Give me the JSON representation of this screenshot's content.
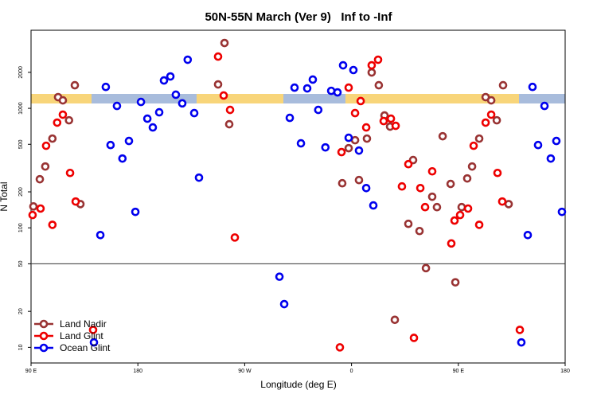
{
  "chart_data": {
    "type": "scatter",
    "title": "50N-55N March (Ver 9)   Inf to -Inf",
    "x_label": "Longitude (deg E)",
    "y_label": "N Total",
    "log_y": true,
    "xlim": [
      90,
      540
    ],
    "ylim": [
      7.4,
      4500
    ],
    "xticks": [
      {
        "value": 90,
        "label": "90 E"
      },
      {
        "value": 180,
        "label": "180"
      },
      {
        "value": 270,
        "label": "90 W"
      },
      {
        "value": 360,
        "label": "0"
      },
      {
        "value": 450,
        "label": "90 E"
      },
      {
        "value": 540,
        "label": "180"
      }
    ],
    "yticks": [
      10,
      20,
      50,
      100,
      200,
      500,
      1000,
      2000
    ],
    "hline": 50,
    "legend": "lower left",
    "series": [
      {
        "name": "Land Nadir",
        "color": "#993333",
        "x": [
          92,
          97.4,
          102,
          108,
          112.8,
          116.8,
          122,
          126.9,
          131.6,
          247.6,
          253,
          257,
          352.2,
          357.6,
          363,
          366.3,
          373,
          377,
          383,
          387.8,
          392.5,
          407.9,
          411.9,
          417.3,
          422.7,
          428,
          432,
          436.8,
          443.5,
          452.8,
          457.5,
          461.6,
          467.6,
          473,
          477.7,
          482.4,
          487.7,
          492.4,
          396.5,
          447.5
        ],
        "values": [
          151,
          255,
          326,
          558,
          1240,
          1166,
          794,
          1560,
          158,
          1585,
          3520,
          736,
          236,
          464,
          541,
          251,
          558,
          1995,
          1560,
          871,
          703,
          108,
          369,
          94,
          46,
          182,
          149,
          584,
          233,
          149,
          259,
          326,
          558,
          1240,
          1166,
          794,
          1560,
          158,
          17,
          35
        ]
      },
      {
        "name": "Land Glint",
        "color": "#ee0000",
        "x": [
          91.3,
          98,
          102.7,
          108,
          112,
          116.8,
          122.9,
          127.6,
          247.6,
          252.3,
          257.7,
          261.7,
          351.6,
          357.6,
          363,
          367.7,
          372.4,
          377,
          382.4,
          387.1,
          393.2,
          397.2,
          402.5,
          407.9,
          412.6,
          418,
          422,
          428,
          444.1,
          446.8,
          451.5,
          458.2,
          462.9,
          467.6,
          473,
          477.7,
          483,
          487,
          501.8,
          142.3,
          350.2
        ],
        "values": [
          128,
          145,
          486,
          106,
          759,
          885,
          288,
          166,
          2710,
          1280,
          970,
          83,
          430,
          1490,
          912,
          1150,
          692,
          2290,
          2550,
          782,
          819,
          714,
          222,
          341,
          12,
          215,
          149,
          297,
          74,
          115,
          128,
          145,
          486,
          106,
          759,
          885,
          288,
          166,
          14,
          14,
          10
        ]
      },
      {
        "name": "Ocean Glint",
        "color": "#0000ee",
        "x": [
          148.4,
          153,
          157,
          162.4,
          167,
          172.5,
          177.9,
          182.6,
          188,
          192.6,
          198,
          202,
          207.4,
          212,
          217.4,
          222,
          227.5,
          231.5,
          299.3,
          303.3,
          308,
          312,
          317.4,
          322.7,
          327.4,
          332,
          338,
          342.9,
          348.2,
          352.9,
          357.6,
          361.6,
          366.3,
          372.4,
          378.4,
          143,
          503.1,
          508.5,
          512.5,
          517.2,
          522.6,
          527.9,
          532.6,
          537.3
        ],
        "values": [
          87,
          1510,
          493,
          1047,
          380,
          533,
          136,
          1130,
          819,
          692,
          926,
          1710,
          1848,
          1300,
          1100,
          2550,
          912,
          263,
          39,
          23,
          832,
          1490,
          509,
          1468,
          1740,
          970,
          471,
          1400,
          1360,
          2290,
          567,
          2090,
          443,
          215,
          154,
          11,
          11,
          87,
          1510,
          493,
          1047,
          380,
          533,
          136
        ]
      }
    ]
  }
}
